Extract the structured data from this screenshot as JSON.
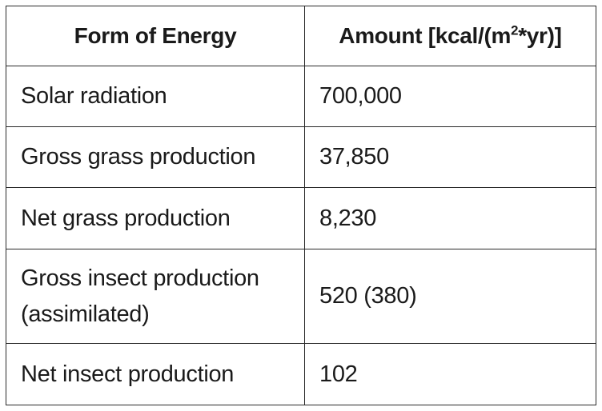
{
  "table": {
    "header": {
      "col1": "Form of Energy",
      "col2_prefix": "Amount [kcal/(m",
      "col2_sup": "2",
      "col2_suffix": "*yr)]"
    },
    "rows": [
      {
        "form": "Solar radiation",
        "amount": "700,000"
      },
      {
        "form": "Gross grass production",
        "amount": "37,850"
      },
      {
        "form": "Net grass production",
        "amount": "8,230"
      },
      {
        "form_line1": "Gross insect production",
        "form_line2": "(assimilated)",
        "amount": "520 (380)"
      },
      {
        "form": "Net insect production",
        "amount": "102"
      }
    ]
  }
}
